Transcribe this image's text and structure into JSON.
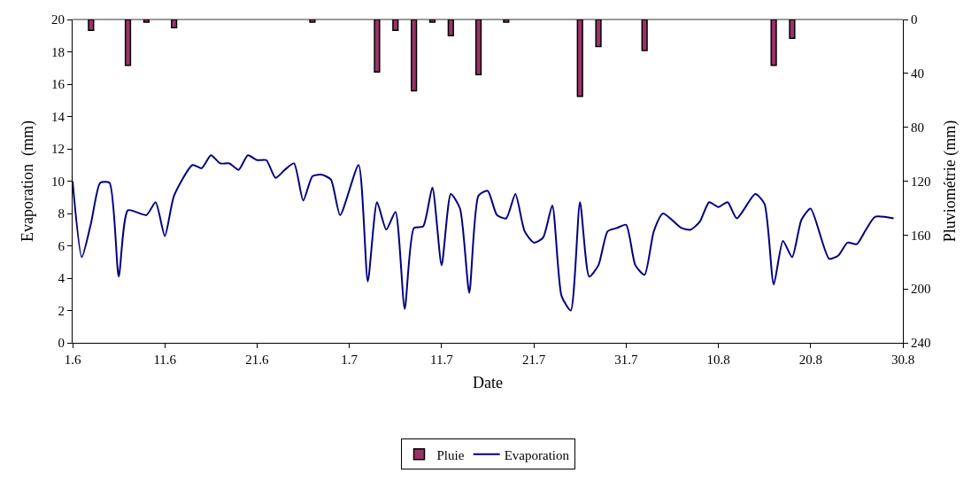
{
  "chart_data": {
    "type": "line",
    "xlabel": "Date",
    "ylabel": "Evaporation  (mm)",
    "y2label": "Pluviométrie (mm)",
    "xlim": [
      "--06-01",
      "--08-30"
    ],
    "xticks": [
      {
        "value": "--06-01",
        "label": "1.6"
      },
      {
        "value": "--06-11",
        "label": "11.6"
      },
      {
        "value": "--06-21",
        "label": "21.6"
      },
      {
        "value": "--07-01",
        "label": "1.7"
      },
      {
        "value": "--07-11",
        "label": "11.7"
      },
      {
        "value": "--07-21",
        "label": "21.7"
      },
      {
        "value": "--07-31",
        "label": "31.7"
      },
      {
        "value": "--08-10",
        "label": "10.8"
      },
      {
        "value": "--08-20",
        "label": "20.8"
      },
      {
        "value": "--08-30",
        "label": "30.8"
      }
    ],
    "ylim": [
      0,
      20
    ],
    "yticks": [
      0,
      2,
      4,
      6,
      8,
      10,
      12,
      14,
      16,
      18,
      20
    ],
    "y2lim": [
      240,
      0
    ],
    "y2ticks": [
      0,
      40,
      80,
      120,
      160,
      200,
      240
    ],
    "legend": "bottom",
    "marker": "none",
    "line_style": "solid",
    "series": [
      {
        "name": "Pluie",
        "type": "bar",
        "axis": "y2",
        "color": "#993366",
        "x": [
          "--06-03",
          "--06-07",
          "--06-09",
          "--06-12",
          "--06-27",
          "--07-04",
          "--07-06",
          "--07-08",
          "--07-10",
          "--07-12",
          "--07-15",
          "--07-18",
          "--07-26",
          "--07-28",
          "--08-02",
          "--08-16",
          "--08-18"
        ],
        "values": [
          8,
          34,
          2,
          6,
          2,
          39,
          8,
          53,
          2,
          12,
          41,
          2,
          57,
          20,
          23,
          34,
          14
        ]
      },
      {
        "name": "Evaporation",
        "color": "#000080",
        "x": [
          "--06-01",
          "--06-02",
          "--06-03",
          "--06-04",
          "--06-05",
          "--06-06",
          "--06-07",
          "--06-09",
          "--06-10",
          "--06-11",
          "--06-12",
          "--06-14",
          "--06-15",
          "--06-16",
          "--06-17",
          "--06-18",
          "--06-19",
          "--06-20",
          "--06-21",
          "--06-22",
          "--06-23",
          "--06-24",
          "--06-25",
          "--06-26",
          "--06-27",
          "--06-28",
          "--06-29",
          "--06-30",
          "--07-02",
          "--07-03",
          "--07-04",
          "--07-05",
          "--07-06",
          "--07-07",
          "--07-08",
          "--07-09",
          "--07-10",
          "--07-11",
          "--07-12",
          "--07-13",
          "--07-14",
          "--07-15",
          "--07-16",
          "--07-17",
          "--07-18",
          "--07-19",
          "--07-20",
          "--07-21",
          "--07-22",
          "--07-23",
          "--07-24",
          "--07-25",
          "--07-26",
          "--07-27",
          "--07-28",
          "--07-29",
          "--07-30",
          "--07-31",
          "--08-01",
          "--08-02",
          "--08-03",
          "--08-04",
          "--08-06",
          "--08-07",
          "--08-08",
          "--08-09",
          "--08-10",
          "--08-11",
          "--08-12",
          "--08-14",
          "--08-15",
          "--08-16",
          "--08-17",
          "--08-18",
          "--08-19",
          "--08-20",
          "--08-22",
          "--08-23",
          "--08-24",
          "--08-25",
          "--08-26",
          "--08-27",
          "--08-29"
        ],
        "values": [
          10.0,
          5.3,
          7.4,
          9.9,
          9.9,
          4.1,
          8.2,
          7.9,
          8.7,
          6.6,
          9.1,
          11.0,
          10.8,
          11.6,
          11.1,
          11.1,
          10.7,
          11.6,
          11.3,
          11.3,
          10.2,
          10.7,
          11.1,
          8.8,
          10.3,
          10.4,
          10.1,
          7.9,
          11.0,
          3.8,
          8.7,
          7.0,
          8.1,
          2.1,
          7.1,
          7.2,
          9.6,
          4.8,
          9.2,
          8.3,
          3.1,
          9.1,
          9.4,
          7.9,
          7.7,
          9.2,
          6.9,
          6.2,
          6.5,
          8.5,
          2.9,
          2.0,
          8.7,
          4.1,
          4.8,
          6.9,
          7.1,
          7.3,
          4.8,
          4.2,
          6.9,
          8.0,
          7.1,
          7.0,
          7.5,
          8.7,
          8.4,
          8.7,
          7.7,
          9.2,
          8.6,
          3.6,
          6.3,
          5.3,
          7.6,
          8.3,
          5.2,
          5.4,
          6.2,
          6.1,
          7.0,
          7.8,
          7.7
        ]
      }
    ]
  }
}
